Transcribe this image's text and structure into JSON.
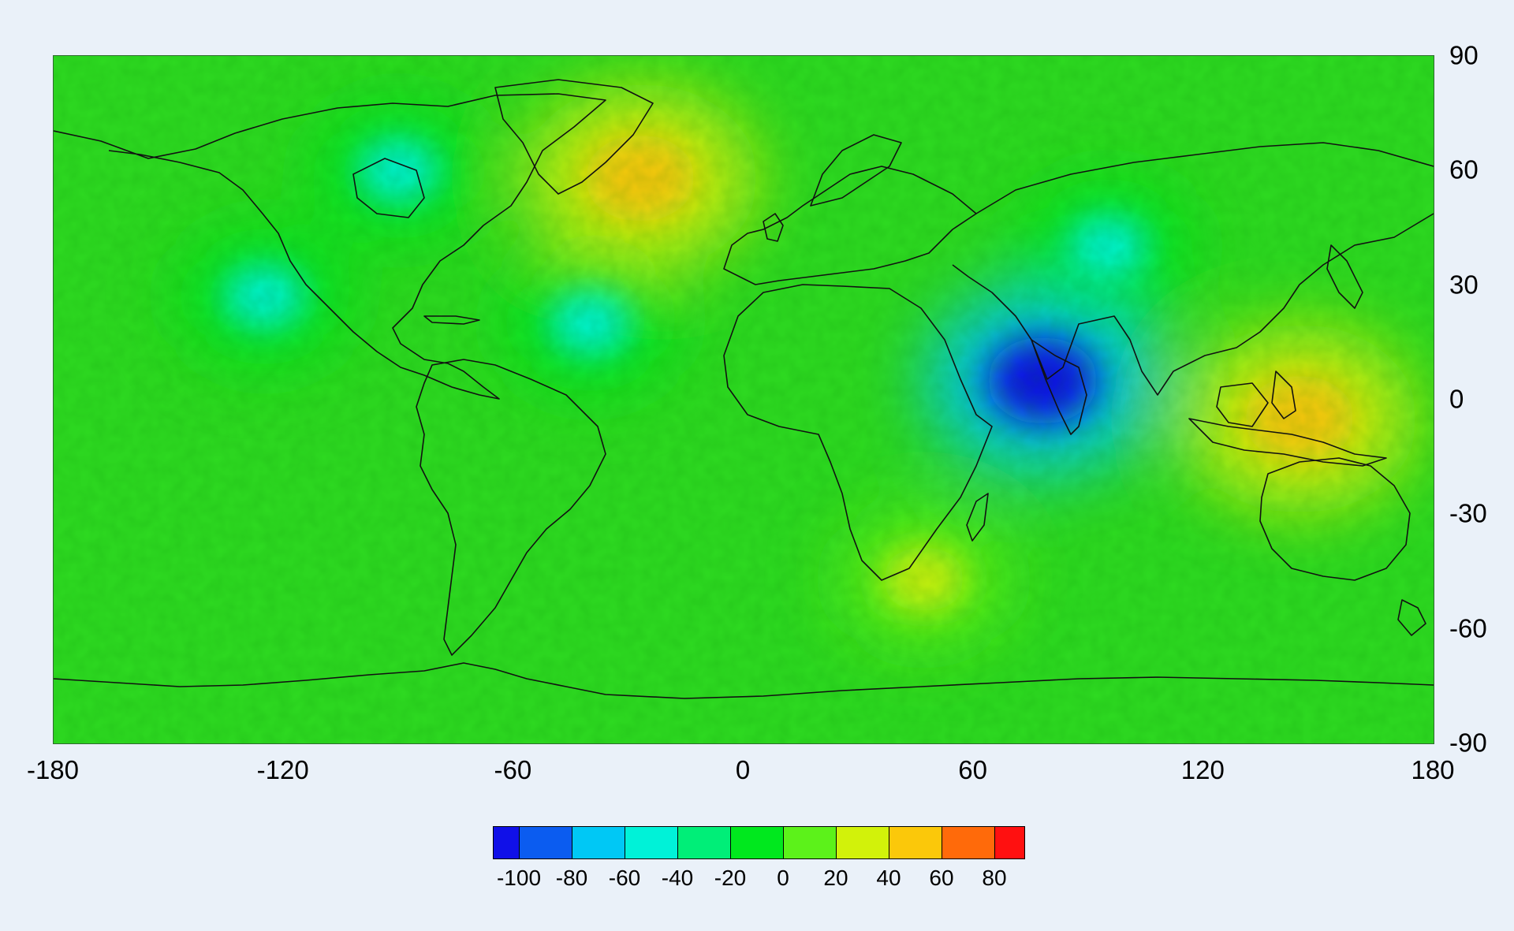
{
  "map": {
    "projection": "equirectangular",
    "lon_range": [
      -180,
      180
    ],
    "lat_range": [
      -90,
      90
    ],
    "basemap": "coastlines",
    "field": "gridded anomaly shaded by color scale",
    "anomaly_centers": [
      {
        "lon": -27,
        "lat": 58,
        "level": 60
      },
      {
        "lon": 78,
        "lat": 5,
        "level": -100
      },
      {
        "lon": 145,
        "lat": -5,
        "level": 60
      },
      {
        "lon": 47,
        "lat": -47,
        "level": 40
      },
      {
        "lon": -125,
        "lat": 27,
        "level": -40
      },
      {
        "lon": -90,
        "lat": 60,
        "level": -40
      },
      {
        "lon": 95,
        "lat": 40,
        "level": -40
      },
      {
        "lon": -40,
        "lat": 20,
        "level": -40
      }
    ]
  },
  "y_axis": {
    "ticks": [
      "90",
      "60",
      "30",
      "0",
      "-30",
      "-60",
      "-90"
    ],
    "values": [
      90,
      60,
      30,
      0,
      -30,
      -60,
      -90
    ]
  },
  "x_axis": {
    "ticks": [
      "-180",
      "-120",
      "-60",
      "0",
      "60",
      "120",
      "180"
    ],
    "values": [
      -180,
      -120,
      -60,
      0,
      60,
      120,
      180
    ]
  },
  "colorbar": {
    "labels": [
      "-100",
      "-80",
      "-60",
      "-40",
      "-20",
      "0",
      "20",
      "40",
      "60",
      "80"
    ],
    "colors": [
      "#1010e8",
      "#0b5cf0",
      "#00c8f5",
      "#00f2d8",
      "#00ee78",
      "#00e81e",
      "#5cf21a",
      "#d2f20a",
      "#fbc80a",
      "#ff6a0a",
      "#ff1010"
    ]
  }
}
